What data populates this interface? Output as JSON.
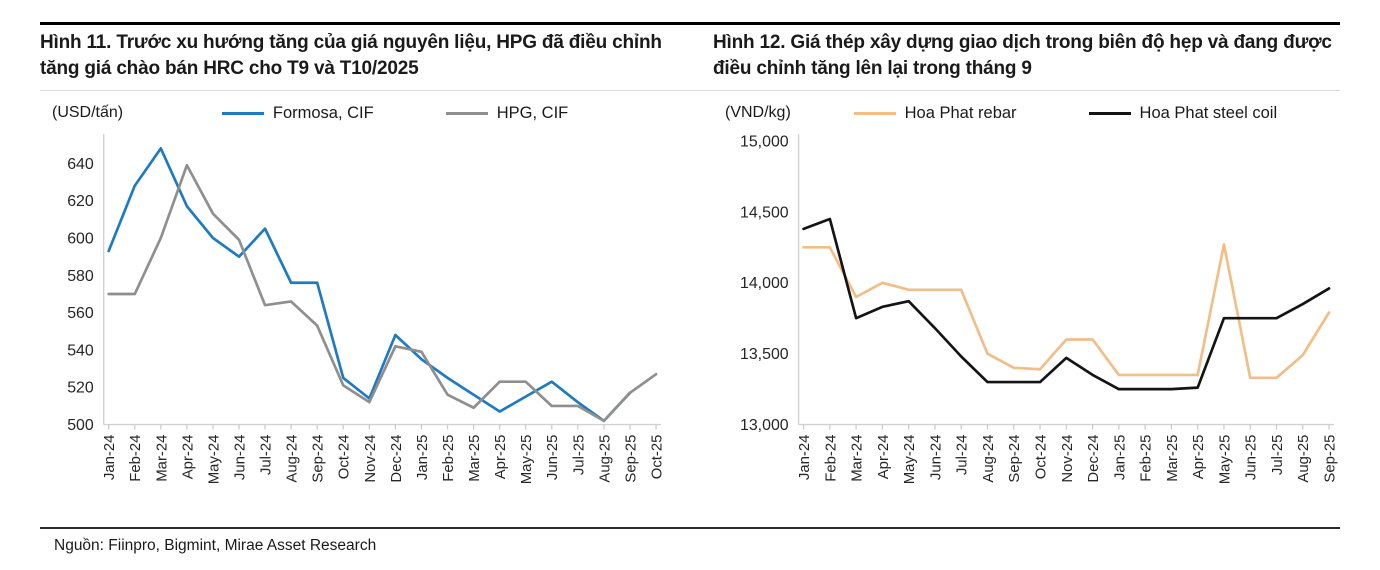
{
  "source": "Nguồn: Fiinpro, Bigmint, Mirae Asset Research",
  "chart_data": [
    {
      "type": "line",
      "title": "Hình 11. Trước xu hướng tăng của giá nguyên liệu, HPG đã điều chỉnh tăng giá chào bán HRC cho T9 và T10/2025",
      "unit_label": "(USD/tấn)",
      "categories": [
        "Jan-24",
        "Feb-24",
        "Mar-24",
        "Apr-24",
        "May-24",
        "Jun-24",
        "Jul-24",
        "Aug-24",
        "Sep-24",
        "Oct-24",
        "Nov-24",
        "Dec-24",
        "Jan-25",
        "Feb-25",
        "Mar-25",
        "Apr-25",
        "May-25",
        "Jun-25",
        "Jul-25",
        "Aug-25",
        "Sep-25",
        "Oct-25"
      ],
      "series": [
        {
          "name": "Formosa, CIF",
          "color": "#1E7AC2",
          "values": [
            593,
            628,
            648,
            617,
            600,
            590,
            605,
            576,
            576,
            525,
            514,
            548,
            535,
            525,
            516,
            507,
            515,
            523,
            512,
            502,
            517,
            null
          ]
        },
        {
          "name": "HPG, CIF",
          "color": "#8F8F8F",
          "values": [
            570,
            570,
            600,
            639,
            613,
            599,
            564,
            566,
            553,
            521,
            512,
            542,
            539,
            516,
            509,
            523,
            523,
            510,
            510,
            502,
            517,
            527
          ]
        }
      ],
      "ylim": [
        500,
        652
      ],
      "yticks": [
        500,
        520,
        540,
        560,
        580,
        600,
        620,
        640
      ],
      "tick_format": "plain",
      "grid": false,
      "legend_position": "top"
    },
    {
      "type": "line",
      "title": "Hình 12. Giá thép xây dựng giao dịch trong biên độ hẹp và đang được điều chỉnh tăng lên lại trong tháng 9",
      "unit_label": "(VND/kg)",
      "categories": [
        "Jan-24",
        "Feb-24",
        "Mar-24",
        "Apr-24",
        "May-24",
        "Jun-24",
        "Jul-24",
        "Aug-24",
        "Sep-24",
        "Oct-24",
        "Nov-24",
        "Dec-24",
        "Jan-25",
        "Feb-25",
        "Mar-25",
        "Apr-25",
        "May-25",
        "Jun-25",
        "Jul-25",
        "Aug-25",
        "Sep-25"
      ],
      "series": [
        {
          "name": "Hoa Phat rebar",
          "color": "#F2BE87",
          "values": [
            14250,
            14250,
            13900,
            14000,
            13950,
            13950,
            13950,
            13500,
            13400,
            13390,
            13600,
            13600,
            13350,
            13350,
            13350,
            13350,
            14270,
            13330,
            13330,
            13490,
            13790
          ]
        },
        {
          "name": "Hoa Phat steel coil",
          "color": "#141414",
          "values": [
            14380,
            14450,
            13750,
            13830,
            13870,
            13680,
            13480,
            13300,
            13300,
            13300,
            13470,
            13350,
            13250,
            13250,
            13250,
            13260,
            13750,
            13750,
            13750,
            13850,
            13960
          ]
        }
      ],
      "ylim": [
        13000,
        15000
      ],
      "yticks": [
        13000,
        13500,
        14000,
        14500,
        15000
      ],
      "tick_format": "thousands",
      "grid": false,
      "legend_position": "top"
    }
  ]
}
